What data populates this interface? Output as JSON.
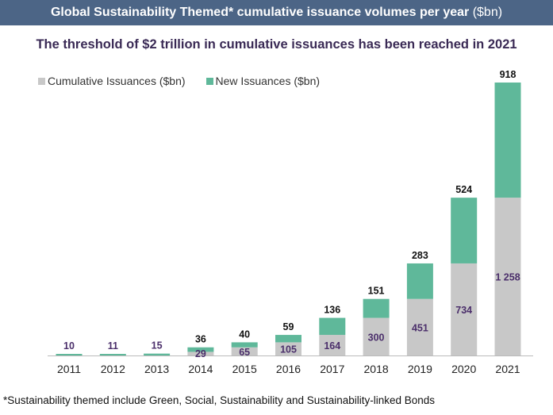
{
  "header": {
    "title": "Global Sustainability Themed* cumulative issuance volumes per year",
    "unit": "($bn)"
  },
  "chart_data": {
    "type": "bar",
    "stacked": true,
    "title": "Global Sustainability Themed* cumulative issuance volumes per year ($bn)",
    "subtitle": "The threshold of $2 trillion in cumulative issuances has been reached in 2021",
    "categories": [
      "2011",
      "2012",
      "2013",
      "2014",
      "2015",
      "2016",
      "2017",
      "2018",
      "2019",
      "2020",
      "2021"
    ],
    "series": [
      {
        "name": "Cumulative Issuances ($bn)",
        "color": "#c8c8c8",
        "label_color": "#4b2f6b",
        "values": [
          null,
          null,
          null,
          29,
          65,
          105,
          164,
          300,
          451,
          734,
          1258
        ],
        "labels": [
          "",
          "",
          "",
          "29",
          "65",
          "105",
          "164",
          "300",
          "451",
          "734",
          "1 258"
        ]
      },
      {
        "name": "New Issuances ($bn)",
        "color": "#5fb89a",
        "label_color": "#111111",
        "values": [
          10,
          11,
          15,
          36,
          40,
          59,
          136,
          151,
          283,
          524,
          918
        ],
        "labels": [
          "10",
          "11",
          "15",
          "36",
          "40",
          "59",
          "136",
          "151",
          "283",
          "524",
          "918"
        ]
      }
    ],
    "xlabel": "",
    "ylabel": "",
    "grid": false,
    "legend": "top-left"
  },
  "footnote": "*Sustainability themed include Green, Social, Sustainability and Sustainability-linked Bonds"
}
